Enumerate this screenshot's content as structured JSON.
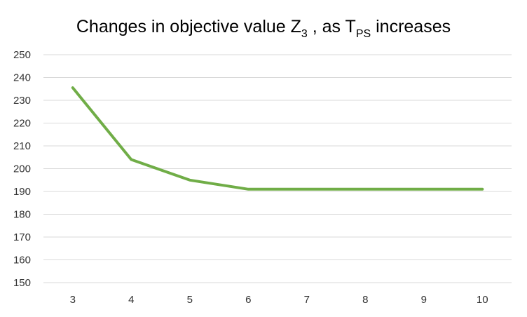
{
  "chart_data": {
    "type": "line",
    "title": {
      "main": "Changes in objective value Z",
      "sub1": "3",
      "mid": " , as T",
      "sub2": "PS",
      "tail": " increases"
    },
    "xlabel": "",
    "ylabel": "",
    "categories": [
      "3",
      "4",
      "5",
      "6",
      "7",
      "8",
      "9",
      "10"
    ],
    "series": [
      {
        "values": [
          235.5,
          204,
          195,
          191,
          191,
          191,
          191,
          191
        ],
        "color": "#70ad47"
      }
    ],
    "ylim": [
      150,
      250
    ],
    "yticks": [
      150,
      160,
      170,
      180,
      190,
      200,
      210,
      220,
      230,
      240,
      250
    ],
    "grid": true,
    "legend": "none"
  }
}
